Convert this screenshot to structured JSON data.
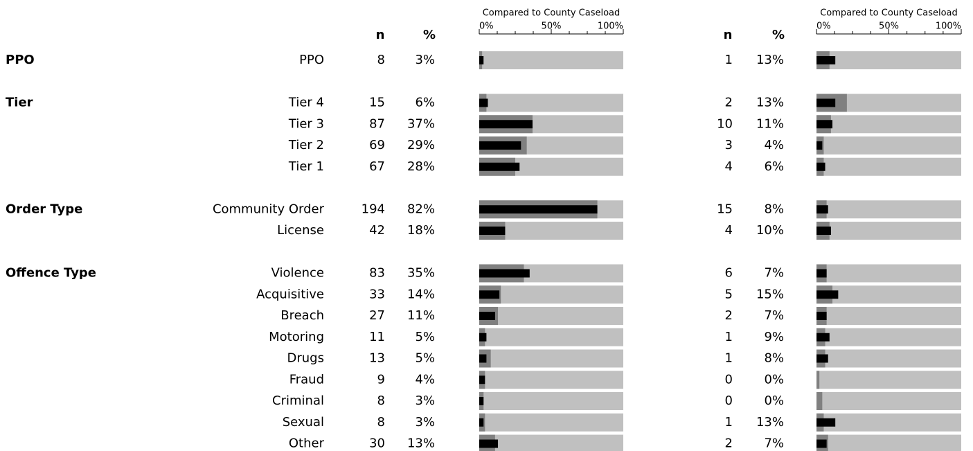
{
  "panels": [
    {
      "title": "Compared to County Caseload",
      "n_header": "n",
      "pct_header": "%",
      "xlim": [
        0,
        100
      ],
      "xticks": [
        {
          "value": 0,
          "label": "0%"
        },
        {
          "value": 50,
          "label": "50%"
        },
        {
          "value": 100,
          "label": "100%"
        }
      ],
      "minor_ticks": [
        12.5,
        25,
        37.5,
        62.5,
        75,
        87.5
      ]
    },
    {
      "title": "Compared to County Caseload",
      "n_header": "n",
      "pct_header": "%",
      "xlim": [
        0,
        100
      ],
      "xticks": [
        {
          "value": 0,
          "label": "0%"
        },
        {
          "value": 50,
          "label": "50%"
        },
        {
          "value": 100,
          "label": "100%"
        }
      ],
      "minor_ticks": [
        12.5,
        25,
        37.5,
        62.5,
        75,
        87.5
      ]
    }
  ],
  "groups": [
    {
      "name": "PPO",
      "rows": [
        {
          "label": "PPO",
          "values": [
            {
              "n": 8,
              "pct": 3,
              "pct_label": "3%",
              "county": 2
            },
            {
              "n": 1,
              "pct": 13,
              "pct_label": "13%",
              "county": 9
            }
          ]
        }
      ]
    },
    {
      "name": "Tier",
      "rows": [
        {
          "label": "Tier 4",
          "values": [
            {
              "n": 15,
              "pct": 6,
              "pct_label": "6%",
              "county": 5
            },
            {
              "n": 2,
              "pct": 13,
              "pct_label": "13%",
              "county": 21
            }
          ]
        },
        {
          "label": "Tier 3",
          "values": [
            {
              "n": 87,
              "pct": 37,
              "pct_label": "37%",
              "county": 37
            },
            {
              "n": 10,
              "pct": 11,
              "pct_label": "11%",
              "county": 10
            }
          ]
        },
        {
          "label": "Tier 2",
          "values": [
            {
              "n": 69,
              "pct": 29,
              "pct_label": "29%",
              "county": 33
            },
            {
              "n": 3,
              "pct": 4,
              "pct_label": "4%",
              "county": 5
            }
          ]
        },
        {
          "label": "Tier 1",
          "values": [
            {
              "n": 67,
              "pct": 28,
              "pct_label": "28%",
              "county": 25
            },
            {
              "n": 4,
              "pct": 6,
              "pct_label": "6%",
              "county": 5
            }
          ]
        }
      ]
    },
    {
      "name": "Order Type",
      "rows": [
        {
          "label": "Community Order",
          "values": [
            {
              "n": 194,
              "pct": 82,
              "pct_label": "82%",
              "county": 82
            },
            {
              "n": 15,
              "pct": 8,
              "pct_label": "8%",
              "county": 7
            }
          ]
        },
        {
          "label": "License",
          "values": [
            {
              "n": 42,
              "pct": 18,
              "pct_label": "18%",
              "county": 18
            },
            {
              "n": 4,
              "pct": 10,
              "pct_label": "10%",
              "county": 9
            }
          ]
        }
      ]
    },
    {
      "name": "Offence Type",
      "rows": [
        {
          "label": "Violence",
          "values": [
            {
              "n": 83,
              "pct": 35,
              "pct_label": "35%",
              "county": 31
            },
            {
              "n": 6,
              "pct": 7,
              "pct_label": "7%",
              "county": 7
            }
          ]
        },
        {
          "label": "Acquisitive",
          "values": [
            {
              "n": 33,
              "pct": 14,
              "pct_label": "14%",
              "county": 15
            },
            {
              "n": 5,
              "pct": 15,
              "pct_label": "15%",
              "county": 11
            }
          ]
        },
        {
          "label": "Breach",
          "values": [
            {
              "n": 27,
              "pct": 11,
              "pct_label": "11%",
              "county": 13
            },
            {
              "n": 2,
              "pct": 7,
              "pct_label": "7%",
              "county": 7
            }
          ]
        },
        {
          "label": "Motoring",
          "values": [
            {
              "n": 11,
              "pct": 5,
              "pct_label": "5%",
              "county": 4
            },
            {
              "n": 1,
              "pct": 9,
              "pct_label": "9%",
              "county": 6
            }
          ]
        },
        {
          "label": "Drugs",
          "values": [
            {
              "n": 13,
              "pct": 5,
              "pct_label": "5%",
              "county": 8
            },
            {
              "n": 1,
              "pct": 8,
              "pct_label": "8%",
              "county": 6
            }
          ]
        },
        {
          "label": "Fraud",
          "values": [
            {
              "n": 9,
              "pct": 4,
              "pct_label": "4%",
              "county": 4
            },
            {
              "n": 0,
              "pct": 0,
              "pct_label": "0%",
              "county": 2
            }
          ]
        },
        {
          "label": "Criminal",
          "values": [
            {
              "n": 8,
              "pct": 3,
              "pct_label": "3%",
              "county": 3
            },
            {
              "n": 0,
              "pct": 0,
              "pct_label": "0%",
              "county": 4
            }
          ]
        },
        {
          "label": "Sexual",
          "values": [
            {
              "n": 8,
              "pct": 3,
              "pct_label": "3%",
              "county": 4
            },
            {
              "n": 1,
              "pct": 13,
              "pct_label": "13%",
              "county": 5
            }
          ]
        },
        {
          "label": "Other",
          "values": [
            {
              "n": 30,
              "pct": 13,
              "pct_label": "13%",
              "county": 11
            },
            {
              "n": 2,
              "pct": 7,
              "pct_label": "7%",
              "county": 8
            }
          ]
        }
      ]
    }
  ]
}
